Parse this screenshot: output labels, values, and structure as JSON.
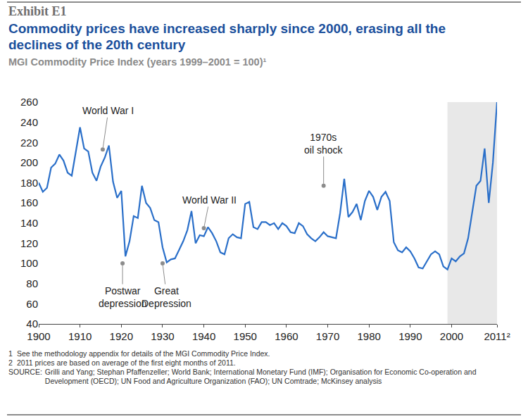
{
  "exhibit": "Exhibit E1",
  "chart_data": {
    "type": "line",
    "title": "Commodity prices have increased sharply since 2000, erasing all the declines of the 20th century",
    "subtitle": "MGI Commodity Price Index (years 1999–2001 = 100)¹",
    "x": [
      1900,
      1901,
      1902,
      1903,
      1904,
      1905,
      1906,
      1907,
      1908,
      1909,
      1910,
      1911,
      1912,
      1913,
      1914,
      1915,
      1916,
      1917,
      1918,
      1919,
      1920,
      1921,
      1922,
      1923,
      1924,
      1925,
      1926,
      1927,
      1928,
      1929,
      1930,
      1931,
      1932,
      1933,
      1934,
      1935,
      1936,
      1937,
      1938,
      1939,
      1940,
      1941,
      1942,
      1943,
      1944,
      1945,
      1946,
      1947,
      1948,
      1949,
      1950,
      1951,
      1952,
      1953,
      1954,
      1955,
      1956,
      1957,
      1958,
      1959,
      1960,
      1961,
      1962,
      1963,
      1964,
      1965,
      1966,
      1967,
      1968,
      1969,
      1970,
      1971,
      1972,
      1973,
      1974,
      1975,
      1976,
      1977,
      1978,
      1979,
      1980,
      1981,
      1982,
      1983,
      1984,
      1985,
      1986,
      1987,
      1988,
      1989,
      1990,
      1991,
      1992,
      1993,
      1994,
      1995,
      1996,
      1997,
      1998,
      1999,
      2000,
      2001,
      2002,
      2003,
      2004,
      2005,
      2006,
      2007,
      2008,
      2009,
      2010,
      2011
    ],
    "values": [
      180,
      171,
      175,
      195,
      199,
      208,
      202,
      190,
      187,
      212,
      235,
      214,
      211,
      190,
      182,
      196,
      205,
      217,
      181,
      165,
      172,
      107,
      122,
      147,
      145,
      177,
      160,
      155,
      143,
      141,
      116,
      101,
      104,
      105,
      113,
      122,
      133,
      152,
      120,
      128,
      127,
      136,
      130,
      122,
      111,
      109,
      125,
      129,
      126,
      125,
      159,
      161,
      136,
      134,
      141,
      141,
      138,
      140,
      134,
      140,
      137,
      131,
      130,
      140,
      137,
      129,
      125,
      122,
      126,
      131,
      127,
      126,
      125,
      150,
      184,
      146,
      151,
      159,
      143,
      162,
      172,
      166,
      153,
      166,
      171,
      162,
      121,
      113,
      111,
      116,
      112,
      105,
      96,
      95,
      102,
      109,
      112,
      109,
      97,
      94,
      105,
      102,
      107,
      110,
      125,
      152,
      177,
      182,
      214,
      160,
      200,
      260
    ],
    "color": "#2a6fc9",
    "xlim": [
      1900,
      2011
    ],
    "xticks": [
      1900,
      1910,
      1920,
      1930,
      1940,
      1950,
      1960,
      1970,
      1980,
      1990,
      2000,
      {
        "value": 2011,
        "label": "2011²"
      }
    ],
    "ylim": [
      40,
      260
    ],
    "yticks": [
      40,
      60,
      80,
      100,
      120,
      140,
      160,
      180,
      200,
      220,
      240,
      260
    ],
    "grid": false,
    "highlight_x": [
      1999,
      2011
    ],
    "annotations": [
      {
        "text": "World War I",
        "x": 1915.5,
        "y": 213
      },
      {
        "text": "Postwar\ndepression",
        "x": 1920.3,
        "y": 100
      },
      {
        "text": "Great\nDepression",
        "x": 1930,
        "y": 100
      },
      {
        "text": "World War II",
        "x": 1940,
        "y": 135
      },
      {
        "text": "1970s\noil shock",
        "x": 1969,
        "y": 177
      }
    ]
  },
  "footnotes": [
    {
      "marker": "1",
      "text": "See the methodology appendix for details of the MGI Commodity Price Index."
    },
    {
      "marker": "2",
      "text": "2011 prices are based on average of the first eight months of 2011."
    }
  ],
  "source": {
    "label": "SOURCE:",
    "text": "Grilli and Yang; Stephan Pfaffenzeller; World Bank; International Monetary Fund (IMF); Organisation for Economic Co-operation and Development (OECD); UN Food and Agriculture Organization (FAO); UN Comtrade; McKinsey analysis"
  }
}
